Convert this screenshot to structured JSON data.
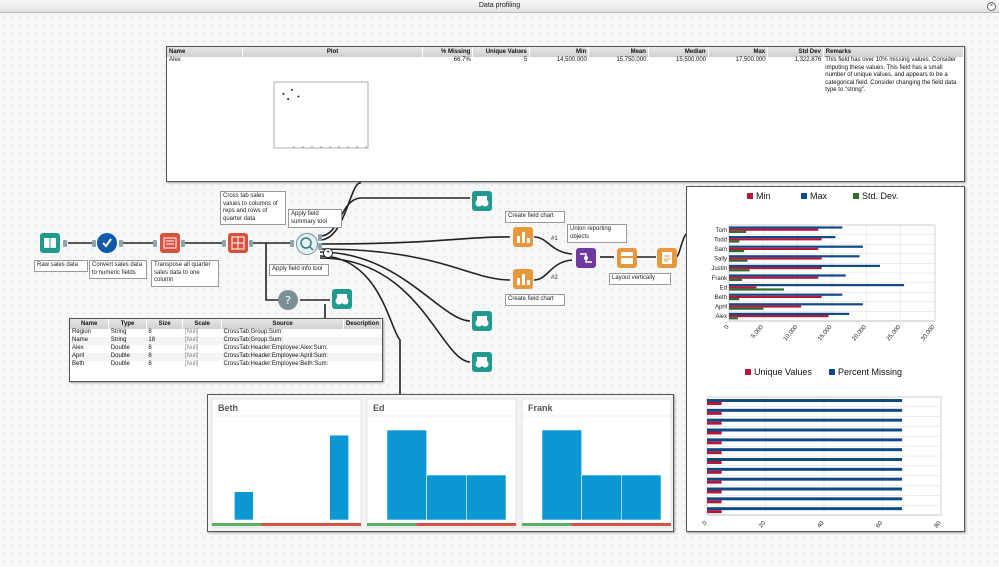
{
  "window": {
    "title": "Data profiling"
  },
  "profile_table": {
    "columns": [
      "Name",
      "Plot",
      "% Missing",
      "Unique Values",
      "Min",
      "Mean",
      "Median",
      "Max",
      "Std Dev",
      "Remarks"
    ],
    "row": {
      "name": "Alex",
      "missing": "66.7%",
      "unique": "5",
      "min": "14,500.000",
      "mean": "15,750.000",
      "median": "15,500.000",
      "max": "17,500.000",
      "std": "1,322.876",
      "remarks": "This field has over 10% missing values. Consider imputing these values. This field has a small number of unique values, and appears to be a categorical field. Consider changing the field data type to \"string\"."
    }
  },
  "tools": {
    "raw": "Raw sales data",
    "convert": "Convert sales data to numeric fields",
    "transpose": "Transpose all quarter sales data to one column",
    "crosstab": "Cross tab sales values to columns of reps and rows of quarter data",
    "summary": "Apply field summary tool",
    "fieldinfo": "Apply field info tool",
    "chart1": "Create field chart",
    "chart2": "Create field chart",
    "union": "Union reporting objects",
    "layout": "Layout vertically",
    "conn1": "#1",
    "conn2": "#2"
  },
  "field_info": {
    "columns": [
      "Name",
      "Type",
      "Size",
      "Scale",
      "Source",
      "Description"
    ],
    "rows": [
      [
        "Region",
        "String",
        "8",
        "[Null]",
        "CrossTab:Group:Sum:",
        ""
      ],
      [
        "Name",
        "String",
        "18",
        "[Null]",
        "CrossTab:Group:Sum:",
        ""
      ],
      [
        "Alex",
        "Double",
        "8",
        "[Null]",
        "CrossTab:Header:Employee:Alex:Sum:",
        ""
      ],
      [
        "April",
        "Double",
        "8",
        "[Null]",
        "CrossTab:Header:Employee:April:Sum:",
        ""
      ],
      [
        "Beth",
        "Double",
        "8",
        "[Null]",
        "CrossTab:Header:Employee:Beth:Sum:",
        ""
      ]
    ]
  },
  "colors": {
    "accent_red": "#b5173a",
    "accent_blue": "#0f4a87",
    "accent_green": "#2f6b2f",
    "hist_blue": "#0a97d2",
    "bar_green": "#58b15f",
    "bar_red": "#d0564a"
  },
  "chart_data": [
    {
      "type": "scatter",
      "points": [
        [
          1,
          8.2
        ],
        [
          1.5,
          7.4
        ],
        [
          1.9,
          8.8
        ],
        [
          2.6,
          7.8
        ]
      ],
      "xlim": [
        0,
        10
      ],
      "ylim": [
        0,
        10
      ],
      "grid": false
    },
    {
      "type": "bar",
      "orientation": "horizontal",
      "categories": [
        "Tom",
        "Todd",
        "Sam",
        "Sally",
        "Justin",
        "Frank",
        "Ed",
        "Beth",
        "April",
        "Alex"
      ],
      "series": [
        {
          "name": "Min",
          "color": "#b5173a",
          "values": [
            13000,
            13500,
            13000,
            13500,
            13500,
            13000,
            4000,
            13500,
            10500,
            14500
          ]
        },
        {
          "name": "Max",
          "color": "#0f4a87",
          "values": [
            16500,
            15500,
            19500,
            19000,
            22000,
            17000,
            25500,
            16500,
            19500,
            17500
          ]
        },
        {
          "name": "Std. Dev.",
          "color": "#2f6b2f",
          "values": [
            2500,
            1500,
            2200,
            2700,
            3000,
            1900,
            8000,
            1500,
            5000,
            1300
          ]
        }
      ],
      "xticks": [
        "0",
        "5,000",
        "10,000",
        "15,000",
        "20,000",
        "25,000",
        "30,000"
      ],
      "xlim": [
        0,
        30000
      ],
      "legend": "top"
    },
    {
      "type": "bar",
      "orientation": "horizontal",
      "series": [
        {
          "name": "Unique Values",
          "color": "#b5173a",
          "values": [
            5,
            5,
            5,
            5,
            5,
            5,
            5,
            5,
            5,
            5,
            5,
            5
          ]
        },
        {
          "name": "Percent Missing",
          "color": "#0f4a87",
          "values": [
            66.7,
            66.7,
            66.7,
            66.7,
            66.7,
            66.7,
            66.7,
            66.7,
            66.7,
            66.7,
            66.7,
            66.7
          ]
        }
      ],
      "xticks": [
        "0",
        "20",
        "40",
        "60",
        "80"
      ],
      "xlim": [
        0,
        80
      ],
      "legend": "top"
    },
    {
      "type": "bar",
      "title": "Beth",
      "values": [
        2,
        0,
        0,
        6
      ],
      "ylim": [
        0,
        7
      ]
    },
    {
      "type": "bar",
      "title": "Ed",
      "values": [
        4,
        2,
        2
      ],
      "ylim": [
        0,
        4.4
      ]
    },
    {
      "type": "bar",
      "title": "Frank",
      "values": [
        4,
        2,
        2
      ],
      "ylim": [
        0,
        4.4
      ]
    }
  ]
}
